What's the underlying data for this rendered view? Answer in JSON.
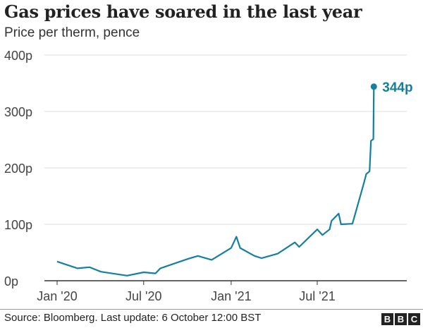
{
  "chart_data": {
    "type": "line",
    "title": "Gas prices have soared in the last year",
    "subtitle": "Price per therm, pence",
    "xlabel": "",
    "ylabel": "",
    "ylim": [
      0,
      400
    ],
    "yticks": [
      0,
      100,
      200,
      300,
      400
    ],
    "ytick_labels": [
      "0p",
      "100p",
      "200p",
      "300p",
      "400p"
    ],
    "xticks": [
      "2020-01-01",
      "2020-07-01",
      "2021-01-01",
      "2021-07-01"
    ],
    "xtick_labels": [
      "Jan '20",
      "Jul '20",
      "Jan '21",
      "Jul '21"
    ],
    "grid": "horizontal",
    "color": "#1380a1",
    "annotation": "344p",
    "series": [
      {
        "x": [
          "2020-01-01",
          "2020-02-13",
          "2020-03-09",
          "2020-04-02",
          "2020-05-27",
          "2020-07-01",
          "2020-07-26",
          "2020-08-05",
          "2020-10-03",
          "2020-10-23",
          "2020-11-21",
          "2021-01-01",
          "2021-01-12",
          "2021-01-20",
          "2021-02-19",
          "2021-03-06",
          "2021-04-09",
          "2021-05-15",
          "2021-05-24",
          "2021-07-01",
          "2021-07-12",
          "2021-07-27",
          "2021-07-31",
          "2021-08-15",
          "2021-08-20",
          "2021-09-13",
          "2021-09-23",
          "2021-10-08",
          "2021-10-12",
          "2021-10-19",
          "2021-10-22",
          "2021-10-27",
          "2021-10-28"
        ],
        "values": [
          34,
          22,
          24,
          16,
          9,
          15,
          13,
          22,
          39,
          44,
          37,
          58,
          78,
          58,
          44,
          40,
          48,
          68,
          60,
          91,
          81,
          91,
          106,
          119,
          100,
          101,
          131,
          176,
          189,
          194,
          248,
          251,
          344
        ]
      }
    ]
  },
  "source": "Source: Bloomberg. Last update: 6 October 12:00 BST",
  "logo": [
    "B",
    "B",
    "C"
  ]
}
